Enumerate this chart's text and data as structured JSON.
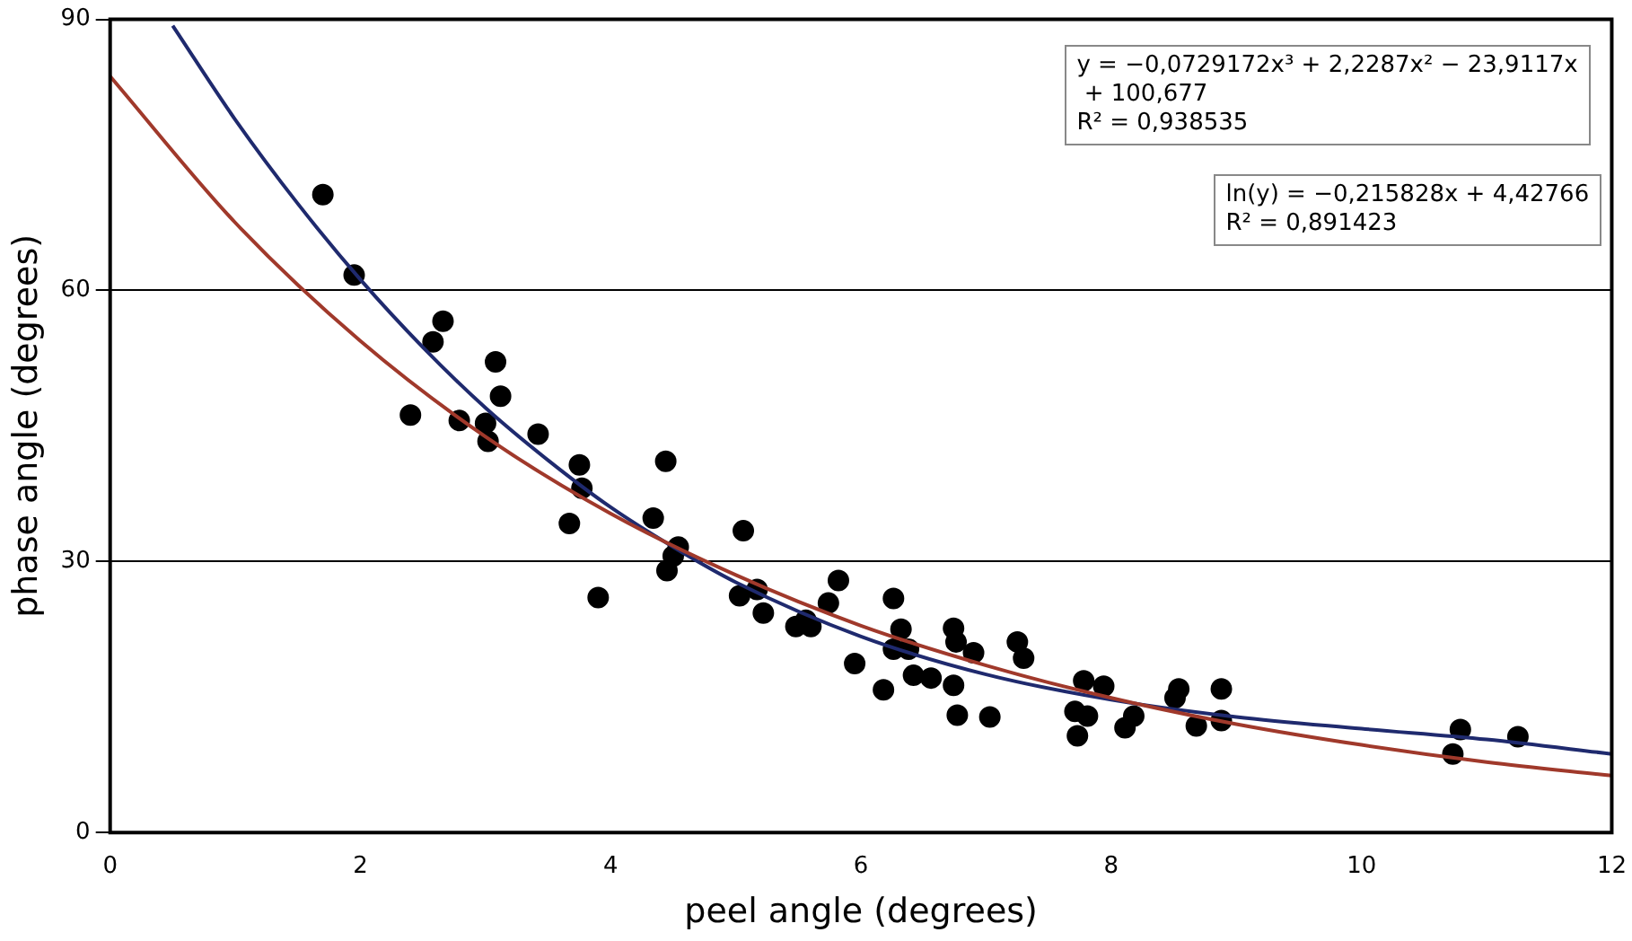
{
  "chart_data": {
    "type": "scatter",
    "xlabel": "peel angle (degrees)",
    "ylabel": "phase angle (degrees)",
    "xlim": [
      0,
      12
    ],
    "xticks": [
      0,
      2,
      4,
      6,
      8,
      10,
      12
    ],
    "ylim": [
      0,
      90
    ],
    "yticks": [
      0,
      30,
      60,
      90
    ],
    "grid": "y",
    "legend": false,
    "annotations": [
      "y = −0,0729172x³ + 2,2287x² − 23,9117x\n + 100,677\nR² = 0,938535",
      "ln(y) = −0,215828x + 4,42766\nR² = 0,891423"
    ],
    "series": [
      {
        "color": "#000000",
        "marker": "circle",
        "x": [
          1.7,
          1.95,
          2.4,
          2.58,
          2.66,
          2.79,
          3.08,
          3.12,
          3.0,
          3.02,
          3.42,
          3.75,
          3.77,
          3.67,
          3.9,
          4.44,
          4.34,
          4.54,
          4.5,
          4.45,
          5.06,
          5.03,
          5.17,
          5.22,
          5.48,
          5.6,
          5.56,
          5.74,
          5.82,
          5.95,
          6.18,
          6.26,
          6.32,
          6.26,
          6.38,
          6.42,
          6.56,
          6.74,
          6.76,
          6.74,
          6.9,
          6.77,
          7.03,
          7.25,
          7.3,
          7.78,
          7.94,
          7.71,
          7.81,
          7.73,
          8.18,
          8.11,
          8.54,
          8.51,
          8.68,
          8.88,
          8.88,
          10.79,
          10.73,
          11.25
        ],
        "values": [
          70.6,
          61.7,
          46.2,
          54.3,
          56.6,
          45.6,
          52.1,
          48.3,
          45.3,
          43.3,
          44.1,
          40.7,
          38.1,
          34.2,
          26.0,
          41.1,
          34.8,
          31.6,
          30.6,
          29.0,
          33.4,
          26.2,
          26.9,
          24.3,
          22.8,
          22.8,
          23.5,
          25.4,
          27.9,
          18.7,
          15.8,
          25.9,
          22.5,
          20.3,
          20.3,
          17.4,
          17.1,
          22.6,
          21.1,
          16.3,
          19.9,
          13.0,
          12.8,
          21.1,
          19.3,
          16.8,
          16.2,
          13.4,
          12.9,
          10.7,
          12.9,
          11.6,
          15.9,
          14.9,
          11.8,
          15.9,
          12.4,
          11.4,
          8.7,
          10.6
        ]
      },
      {
        "type": "line",
        "color": "#a0392b",
        "marker": "none",
        "x": [
          0,
          1,
          2,
          3,
          4,
          5,
          6,
          7,
          8,
          9,
          10,
          11,
          12
        ],
        "values": [
          83.7,
          67.5,
          54.4,
          43.8,
          35.3,
          28.5,
          22.9,
          18.5,
          14.9,
          12.0,
          9.7,
          7.8,
          6.3
        ]
      },
      {
        "type": "line",
        "color": "#1f2a6e",
        "marker": "none",
        "x": [
          0.5,
          1,
          1.5,
          2,
          2.5,
          3,
          3.5,
          4,
          4.5,
          5,
          6,
          7,
          8,
          9,
          10,
          11,
          12
        ],
        "values": [
          89.3,
          78.9,
          69.6,
          61.2,
          53.7,
          47.0,
          41.2,
          36.0,
          31.6,
          27.7,
          21.7,
          17.5,
          14.7,
          12.8,
          11.5,
          10.3,
          8.7
        ]
      }
    ]
  }
}
